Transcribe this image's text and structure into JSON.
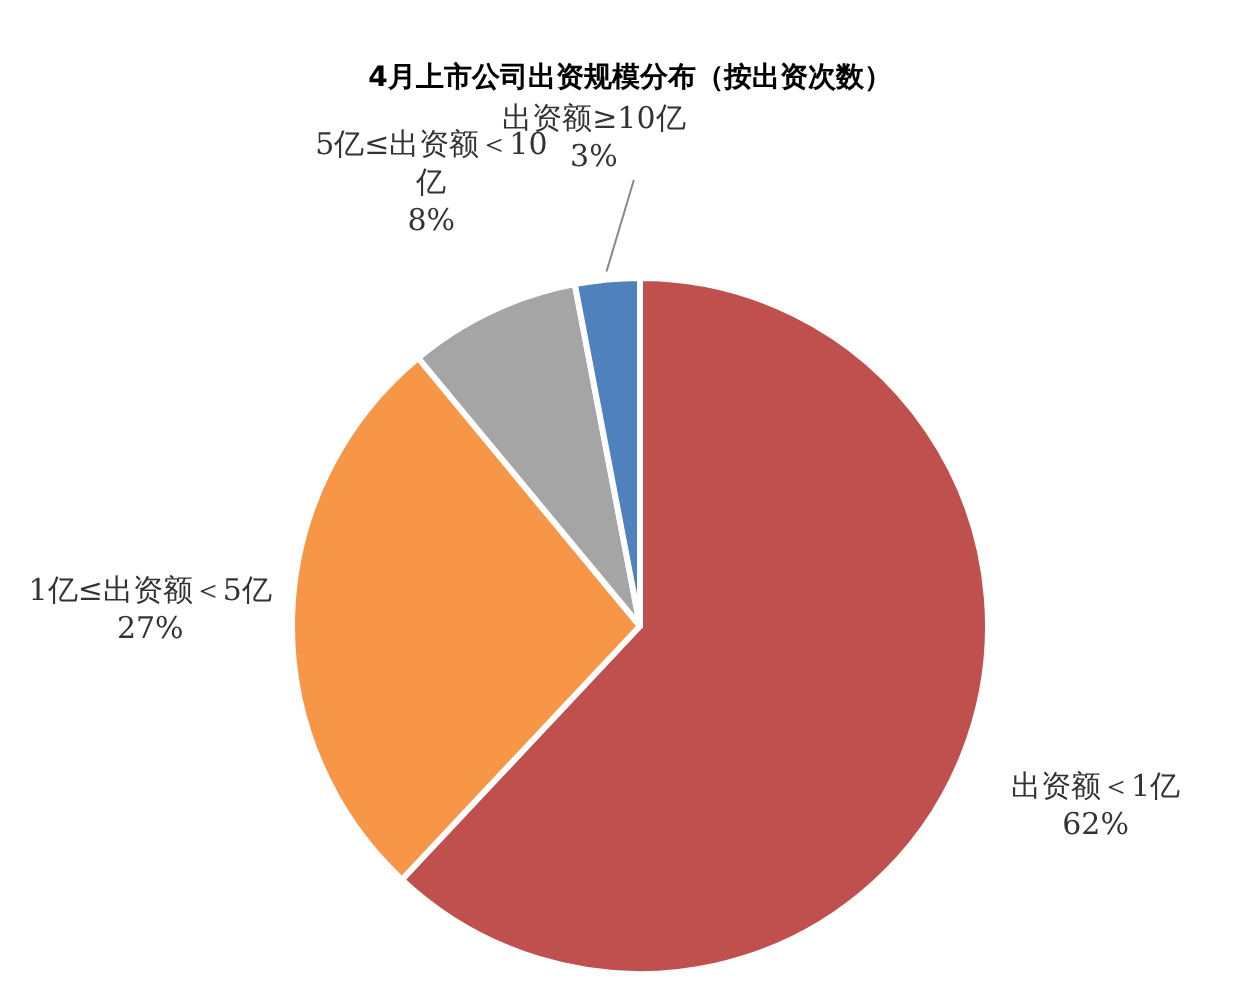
{
  "chart_data": {
    "type": "pie",
    "title": "4月上市公司出资规模分布（按出资次数）",
    "categories": [
      "出资额＜1亿",
      "1亿≤出资额＜5亿",
      "5亿≤出资额＜10亿",
      "出资额≥10亿"
    ],
    "values": [
      62,
      27,
      8,
      3
    ],
    "value_labels": [
      "62%",
      "27%",
      "8%",
      "3%"
    ],
    "colors": [
      "#c0504d",
      "#f79646",
      "#a5a5a5",
      "#4f81bd"
    ]
  }
}
